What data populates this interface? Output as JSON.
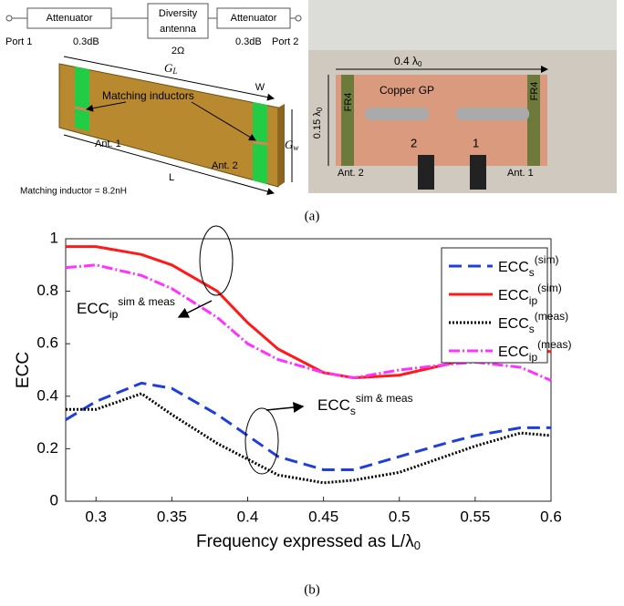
{
  "figure_a": {
    "schematic": {
      "port1": "Port 1",
      "att1": "Attenuator",
      "att1_loss": "0.3dB",
      "div_ant": "Diversity",
      "div_ant2": "antenna",
      "div_imp": "2Ω",
      "att2": "Attenuator",
      "att2_loss": "0.3dB",
      "port2": "Port 2"
    },
    "antenna": {
      "gl": "G",
      "gl_sub": "L",
      "w": "W",
      "inductors": "Matching inductors",
      "gw": "G",
      "gw_sub": "w",
      "ant1": "Ant. 1",
      "ant2": "Ant. 2",
      "l": "L",
      "note": "Matching inductor = 8.2nH"
    },
    "photo": {
      "width": "0.4 λ",
      "width_sub": "0",
      "gp": "Copper GP",
      "fr4a": "FR4",
      "fr4b": "FR4",
      "height": "0.15 λ",
      "height_sub": "0",
      "n2": "2",
      "n1": "1",
      "ant2": "Ant. 2",
      "ant1": "Ant. 1"
    },
    "caption": "(a)"
  },
  "chart_data": {
    "type": "line",
    "x": [
      0.28,
      0.3,
      0.33,
      0.35,
      0.38,
      0.4,
      0.42,
      0.45,
      0.47,
      0.5,
      0.53,
      0.55,
      0.58,
      0.6
    ],
    "series": [
      {
        "name": "ECC",
        "sub": "s",
        "sup": "(sim)",
        "color": "#1f3fd8",
        "style": "dashed",
        "values": [
          0.31,
          0.38,
          0.45,
          0.43,
          0.33,
          0.25,
          0.17,
          0.12,
          0.12,
          0.17,
          0.22,
          0.25,
          0.28,
          0.28
        ]
      },
      {
        "name": "ECC",
        "sub": "ip",
        "sup": "(sim)",
        "color": "#ff1a1a",
        "style": "solid",
        "values": [
          0.97,
          0.97,
          0.94,
          0.9,
          0.8,
          0.68,
          0.58,
          0.49,
          0.47,
          0.48,
          0.52,
          0.55,
          0.58,
          0.57
        ]
      },
      {
        "name": "ECC",
        "sub": "s",
        "sup": "(meas)",
        "color": "#000000",
        "style": "dotted",
        "values": [
          0.35,
          0.35,
          0.41,
          0.33,
          0.22,
          0.16,
          0.1,
          0.07,
          0.08,
          0.11,
          0.17,
          0.21,
          0.26,
          0.25
        ]
      },
      {
        "name": "ECC",
        "sub": "ip",
        "sup": "(meas)",
        "color": "#ff33ff",
        "style": "dashdot",
        "values": [
          0.89,
          0.9,
          0.86,
          0.81,
          0.7,
          0.6,
          0.54,
          0.49,
          0.47,
          0.5,
          0.52,
          0.53,
          0.51,
          0.46
        ]
      }
    ],
    "xlabel": "Frequency expressed as L/λ",
    "xlabel_sub": "0",
    "ylabel": "ECC",
    "xlim": [
      0.28,
      0.6
    ],
    "xticks": [
      0.3,
      0.35,
      0.4,
      0.45,
      0.5,
      0.55,
      0.6
    ],
    "ylim": [
      0,
      1
    ],
    "yticks": [
      0,
      0.2,
      0.4,
      0.6,
      0.8,
      1
    ],
    "annotations": [
      {
        "text": "ECC",
        "sub": "ip",
        "sup": "sim & meas"
      },
      {
        "text": "ECC",
        "sub": "s",
        "sup": "sim & meas"
      }
    ],
    "legend": "upper right",
    "caption": "(b)"
  }
}
